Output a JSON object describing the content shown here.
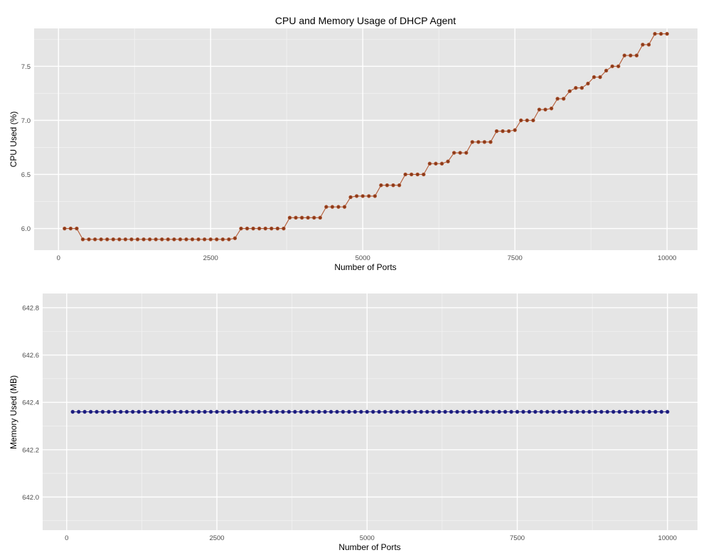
{
  "figure": {
    "title": "CPU and Memory Usage of DHCP Agent"
  },
  "colors": {
    "panel_background": "#e5e5e5",
    "grid_major": "#ffffff",
    "grid_minor": "#f2f2f2",
    "cpu_line": "#b35a35",
    "cpu_point_fill": "#8b3a1a",
    "mem_line": "#2c2c8c",
    "mem_point_fill": "#1c1c7c"
  },
  "chart_data": [
    {
      "type": "line",
      "title": "CPU and Memory Usage of DHCP Agent",
      "xlabel": "Number of Ports",
      "ylabel": "CPU Used (%)",
      "xlim": [
        -400,
        10500
      ],
      "ylim": [
        5.8,
        7.85
      ],
      "x_ticks": [
        0,
        2500,
        5000,
        7500,
        10000
      ],
      "x_tick_labels": [
        "0",
        "2500",
        "5000",
        "7500",
        "10000"
      ],
      "y_ticks": [
        6.0,
        6.5,
        7.0,
        7.5
      ],
      "y_tick_labels": [
        "6.0",
        "6.5",
        "7.0",
        "7.5"
      ],
      "grid": true,
      "series": [
        {
          "x": [
            100,
            200,
            300,
            400,
            500,
            600,
            700,
            800,
            900,
            1000,
            1100,
            1200,
            1300,
            1400,
            1500,
            1600,
            1700,
            1800,
            1900,
            2000,
            2100,
            2200,
            2300,
            2400,
            2500,
            2600,
            2700,
            2800,
            2900,
            3000,
            3100,
            3200,
            3300,
            3400,
            3500,
            3600,
            3700,
            3800,
            3900,
            4000,
            4100,
            4200,
            4300,
            4400,
            4500,
            4600,
            4700,
            4800,
            4900,
            5000,
            5100,
            5200,
            5300,
            5400,
            5500,
            5600,
            5700,
            5800,
            5900,
            6000,
            6100,
            6200,
            6300,
            6400,
            6500,
            6600,
            6700,
            6800,
            6900,
            7000,
            7100,
            7200,
            7300,
            7400,
            7500,
            7600,
            7700,
            7800,
            7900,
            8000,
            8100,
            8200,
            8300,
            8400,
            8500,
            8600,
            8700,
            8800,
            8900,
            9000,
            9100,
            9200,
            9300,
            9400,
            9500,
            9600,
            9700,
            9800,
            9900,
            10000
          ],
          "y": [
            6.0,
            6.0,
            6.0,
            5.9,
            5.9,
            5.9,
            5.9,
            5.9,
            5.9,
            5.9,
            5.9,
            5.9,
            5.9,
            5.9,
            5.9,
            5.9,
            5.9,
            5.9,
            5.9,
            5.9,
            5.9,
            5.9,
            5.9,
            5.9,
            5.9,
            5.9,
            5.9,
            5.9,
            5.91,
            6.0,
            6.0,
            6.0,
            6.0,
            6.0,
            6.0,
            6.0,
            6.0,
            6.1,
            6.1,
            6.1,
            6.1,
            6.1,
            6.1,
            6.2,
            6.2,
            6.2,
            6.2,
            6.29,
            6.3,
            6.3,
            6.3,
            6.3,
            6.4,
            6.4,
            6.4,
            6.4,
            6.5,
            6.5,
            6.5,
            6.5,
            6.6,
            6.6,
            6.6,
            6.62,
            6.7,
            6.7,
            6.7,
            6.8,
            6.8,
            6.8,
            6.8,
            6.9,
            6.9,
            6.9,
            6.91,
            7.0,
            7.0,
            7.0,
            7.1,
            7.1,
            7.11,
            7.2,
            7.2,
            7.27,
            7.3,
            7.3,
            7.34,
            7.4,
            7.4,
            7.46,
            7.5,
            7.5,
            7.6,
            7.6,
            7.6,
            7.7,
            7.7,
            7.8,
            7.8,
            7.8
          ]
        }
      ]
    },
    {
      "type": "line",
      "xlabel": "Number of Ports",
      "ylabel": "Memory Used (MB)",
      "xlim": [
        -400,
        10500
      ],
      "ylim": [
        641.86,
        642.86
      ],
      "x_ticks": [
        0,
        2500,
        5000,
        7500,
        10000
      ],
      "x_tick_labels": [
        "0",
        "2500",
        "5000",
        "7500",
        "10000"
      ],
      "y_ticks": [
        642.0,
        642.2,
        642.4,
        642.6,
        642.8
      ],
      "y_tick_labels": [
        "642.0",
        "642.2",
        "642.4",
        "642.6",
        "642.8"
      ],
      "grid": true,
      "series": [
        {
          "x": [
            100,
            200,
            300,
            400,
            500,
            600,
            700,
            800,
            900,
            1000,
            1100,
            1200,
            1300,
            1400,
            1500,
            1600,
            1700,
            1800,
            1900,
            2000,
            2100,
            2200,
            2300,
            2400,
            2500,
            2600,
            2700,
            2800,
            2900,
            3000,
            3100,
            3200,
            3300,
            3400,
            3500,
            3600,
            3700,
            3800,
            3900,
            4000,
            4100,
            4200,
            4300,
            4400,
            4500,
            4600,
            4700,
            4800,
            4900,
            5000,
            5100,
            5200,
            5300,
            5400,
            5500,
            5600,
            5700,
            5800,
            5900,
            6000,
            6100,
            6200,
            6300,
            6400,
            6500,
            6600,
            6700,
            6800,
            6900,
            7000,
            7100,
            7200,
            7300,
            7400,
            7500,
            7600,
            7700,
            7800,
            7900,
            8000,
            8100,
            8200,
            8300,
            8400,
            8500,
            8600,
            8700,
            8800,
            8900,
            9000,
            9100,
            9200,
            9300,
            9400,
            9500,
            9600,
            9700,
            9800,
            9900,
            10000
          ],
          "y_constant": 642.36
        }
      ]
    }
  ]
}
